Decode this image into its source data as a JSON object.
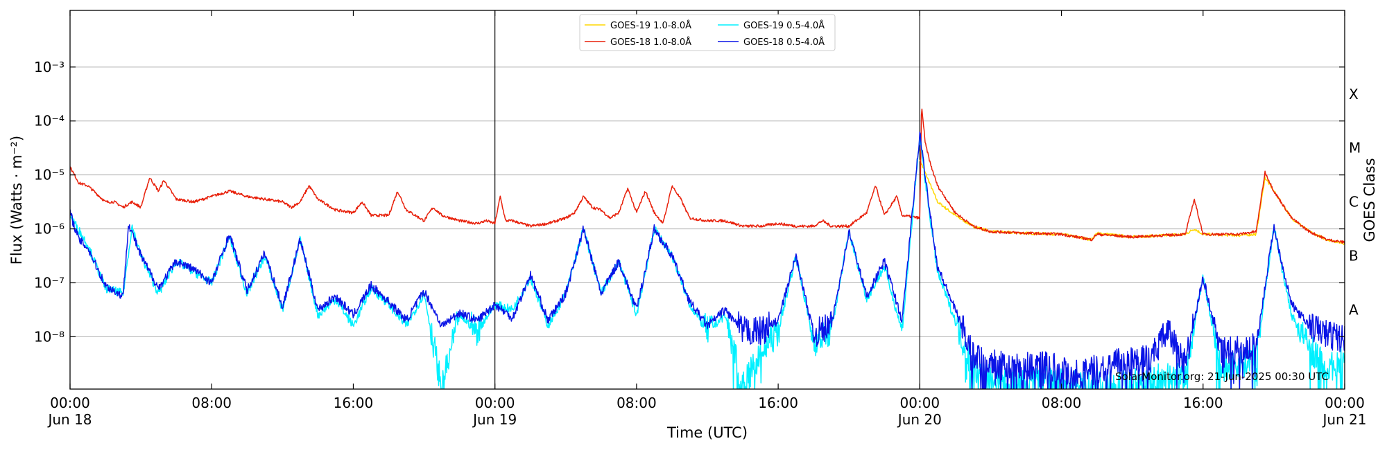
{
  "chart_data": {
    "type": "line",
    "title": "",
    "xlabel": "Time (UTC)",
    "ylabel": "Flux (Watts · m⁻²)",
    "right_label": "GOES Class",
    "credit": "SolarMonitor.org: 21-Jun-2025 00:30 UTC",
    "x_unit": "hours since Jun 18 00:00 UTC",
    "xlim": [
      0,
      72
    ],
    "ylim_log10": [
      -8.97,
      -1.95
    ],
    "grid": true,
    "legend_position": "top-center",
    "x_ticks": [
      {
        "t": 0,
        "line1": "00:00",
        "line2": "Jun 18"
      },
      {
        "t": 8,
        "line1": "08:00",
        "line2": ""
      },
      {
        "t": 16,
        "line1": "16:00",
        "line2": ""
      },
      {
        "t": 24,
        "line1": "00:00",
        "line2": "Jun 19"
      },
      {
        "t": 32,
        "line1": "08:00",
        "line2": ""
      },
      {
        "t": 40,
        "line1": "16:00",
        "line2": ""
      },
      {
        "t": 48,
        "line1": "00:00",
        "line2": "Jun 20"
      },
      {
        "t": 56,
        "line1": "08:00",
        "line2": ""
      },
      {
        "t": 64,
        "line1": "16:00",
        "line2": ""
      },
      {
        "t": 72,
        "line1": "00:00",
        "line2": "Jun 21"
      }
    ],
    "y_ticks": [
      {
        "exp": -8,
        "label": "10⁻⁸"
      },
      {
        "exp": -7,
        "label": "10⁻⁷"
      },
      {
        "exp": -6,
        "label": "10⁻⁶"
      },
      {
        "exp": -5,
        "label": "10⁻⁵"
      },
      {
        "exp": -4,
        "label": "10⁻⁴"
      },
      {
        "exp": -3,
        "label": "10⁻³"
      }
    ],
    "goes_classes": [
      {
        "label": "A",
        "exp": -7.5
      },
      {
        "label": "B",
        "exp": -6.5
      },
      {
        "label": "C",
        "exp": -5.5
      },
      {
        "label": "M",
        "exp": -4.5
      },
      {
        "label": "X",
        "exp": -3.5
      }
    ],
    "day_markers": [
      24,
      48
    ],
    "series": [
      {
        "name": "GOES-19 1.0-8.0Å",
        "color": "#FFD700",
        "band": "long",
        "points": [
          [
            48,
            -4.72
          ],
          [
            49,
            -5.5
          ],
          [
            50,
            -5.75
          ],
          [
            51,
            -5.95
          ],
          [
            52,
            -6.05
          ],
          [
            54,
            -6.08
          ],
          [
            56,
            -6.1
          ],
          [
            57.7,
            -6.2
          ],
          [
            58,
            -6.08
          ],
          [
            60,
            -6.15
          ],
          [
            63,
            -6.1
          ],
          [
            63.5,
            -6.0
          ],
          [
            64,
            -6.1
          ],
          [
            66,
            -6.12
          ],
          [
            67,
            -6.1
          ],
          [
            67.5,
            -5.05
          ],
          [
            68,
            -5.3
          ],
          [
            69,
            -5.8
          ],
          [
            70,
            -6.05
          ],
          [
            71,
            -6.2
          ],
          [
            72,
            -6.27
          ]
        ]
      },
      {
        "name": "GOES-18 1.0-8.0Å",
        "color": "#E8200A",
        "band": "long",
        "points": [
          [
            0,
            -4.85
          ],
          [
            0.5,
            -5.15
          ],
          [
            1,
            -5.2
          ],
          [
            1.5,
            -5.35
          ],
          [
            2,
            -5.5
          ],
          [
            2.5,
            -5.5
          ],
          [
            3,
            -5.6
          ],
          [
            3.5,
            -5.5
          ],
          [
            4,
            -5.6
          ],
          [
            4.5,
            -5.05
          ],
          [
            5,
            -5.3
          ],
          [
            5.3,
            -5.1
          ],
          [
            6,
            -5.45
          ],
          [
            7,
            -5.5
          ],
          [
            8,
            -5.4
          ],
          [
            9,
            -5.3
          ],
          [
            10,
            -5.4
          ],
          [
            11,
            -5.45
          ],
          [
            12,
            -5.5
          ],
          [
            12.5,
            -5.6
          ],
          [
            13,
            -5.5
          ],
          [
            13.5,
            -5.2
          ],
          [
            14,
            -5.45
          ],
          [
            15,
            -5.65
          ],
          [
            16,
            -5.7
          ],
          [
            16.5,
            -5.5
          ],
          [
            17,
            -5.75
          ],
          [
            18,
            -5.75
          ],
          [
            18.5,
            -5.3
          ],
          [
            19,
            -5.65
          ],
          [
            20,
            -5.85
          ],
          [
            20.5,
            -5.6
          ],
          [
            21,
            -5.75
          ],
          [
            22,
            -5.85
          ],
          [
            23,
            -5.9
          ],
          [
            23.5,
            -5.85
          ],
          [
            24,
            -5.9
          ],
          [
            24.3,
            -5.4
          ],
          [
            24.6,
            -5.85
          ],
          [
            25,
            -5.85
          ],
          [
            26,
            -5.95
          ],
          [
            27,
            -5.9
          ],
          [
            28,
            -5.8
          ],
          [
            28.5,
            -5.7
          ],
          [
            29,
            -5.4
          ],
          [
            29.5,
            -5.6
          ],
          [
            30,
            -5.65
          ],
          [
            30.5,
            -5.8
          ],
          [
            31,
            -5.7
          ],
          [
            31.5,
            -5.25
          ],
          [
            32,
            -5.7
          ],
          [
            32.5,
            -5.3
          ],
          [
            33,
            -5.7
          ],
          [
            33.5,
            -5.9
          ],
          [
            34,
            -5.2
          ],
          [
            34.5,
            -5.45
          ],
          [
            35,
            -5.8
          ],
          [
            36,
            -5.85
          ],
          [
            37,
            -5.85
          ],
          [
            38,
            -5.95
          ],
          [
            39,
            -5.95
          ],
          [
            40,
            -5.9
          ],
          [
            41,
            -5.95
          ],
          [
            42,
            -5.95
          ],
          [
            42.5,
            -5.85
          ],
          [
            43,
            -5.95
          ],
          [
            44,
            -5.95
          ],
          [
            45,
            -5.7
          ],
          [
            45.5,
            -5.2
          ],
          [
            46,
            -5.75
          ],
          [
            46.7,
            -5.4
          ],
          [
            47,
            -5.75
          ],
          [
            48,
            -5.8
          ],
          [
            48.1,
            -3.7
          ],
          [
            48.3,
            -4.4
          ],
          [
            48.6,
            -4.8
          ],
          [
            49,
            -5.2
          ],
          [
            50,
            -5.7
          ],
          [
            51,
            -5.95
          ],
          [
            52,
            -6.05
          ],
          [
            54,
            -6.08
          ],
          [
            56,
            -6.1
          ],
          [
            57.7,
            -6.2
          ],
          [
            58,
            -6.1
          ],
          [
            60,
            -6.15
          ],
          [
            63,
            -6.1
          ],
          [
            63.5,
            -5.45
          ],
          [
            64,
            -6.1
          ],
          [
            66,
            -6.1
          ],
          [
            67,
            -6.05
          ],
          [
            67.5,
            -4.95
          ],
          [
            68,
            -5.3
          ],
          [
            69,
            -5.8
          ],
          [
            70,
            -6.05
          ],
          [
            71,
            -6.2
          ],
          [
            72,
            -6.25
          ]
        ]
      },
      {
        "name": "GOES-19 0.5-4.0Å",
        "color": "#00F0FF",
        "band": "short",
        "points": [
          [
            0,
            -5.75
          ],
          [
            1,
            -6.3
          ],
          [
            2,
            -7.1
          ],
          [
            3,
            -7.2
          ],
          [
            3.5,
            -5.95
          ],
          [
            4,
            -6.5
          ],
          [
            5,
            -7.2
          ],
          [
            6,
            -6.6
          ],
          [
            7,
            -6.8
          ],
          [
            8,
            -7.0
          ],
          [
            9,
            -6.15
          ],
          [
            10,
            -7.2
          ],
          [
            11,
            -6.5
          ],
          [
            12,
            -7.5
          ],
          [
            13,
            -6.2
          ],
          [
            14,
            -7.6
          ],
          [
            15,
            -7.3
          ],
          [
            16,
            -7.8
          ],
          [
            17,
            -7.1
          ],
          [
            18,
            -7.4
          ],
          [
            19,
            -7.8
          ],
          [
            20,
            -7.2
          ],
          [
            21,
            -8.95
          ],
          [
            22,
            -7.6
          ],
          [
            23,
            -7.9
          ],
          [
            24,
            -7.4
          ],
          [
            25,
            -7.5
          ],
          [
            26,
            -6.9
          ],
          [
            27,
            -7.8
          ],
          [
            28,
            -7.2
          ],
          [
            29,
            -6.0
          ],
          [
            30,
            -7.2
          ],
          [
            31,
            -6.6
          ],
          [
            32,
            -7.6
          ],
          [
            33,
            -6.0
          ],
          [
            34,
            -6.5
          ],
          [
            35,
            -7.4
          ],
          [
            36,
            -7.9
          ],
          [
            37,
            -7.6
          ],
          [
            38,
            -8.95
          ],
          [
            39,
            -8.3
          ],
          [
            40,
            -7.9
          ],
          [
            41,
            -6.5
          ],
          [
            42,
            -8.1
          ],
          [
            43,
            -7.9
          ],
          [
            44,
            -6.05
          ],
          [
            45,
            -7.3
          ],
          [
            46,
            -6.7
          ],
          [
            47,
            -7.9
          ],
          [
            48,
            -4.3
          ],
          [
            48.5,
            -5.6
          ],
          [
            49,
            -6.8
          ],
          [
            50,
            -7.7
          ],
          [
            51,
            -8.6
          ],
          [
            53,
            -8.9
          ],
          [
            55,
            -8.8
          ],
          [
            57,
            -8.9
          ],
          [
            59,
            -8.9
          ],
          [
            61,
            -8.8
          ],
          [
            63,
            -8.7
          ],
          [
            64,
            -6.9
          ],
          [
            65,
            -8.6
          ],
          [
            67,
            -8.4
          ],
          [
            68,
            -5.95
          ],
          [
            68.5,
            -6.8
          ],
          [
            69,
            -7.6
          ],
          [
            70,
            -8.2
          ],
          [
            71,
            -8.6
          ],
          [
            72,
            -8.4
          ]
        ]
      },
      {
        "name": "GOES-18 0.5-4.0Å",
        "color": "#0A14E6",
        "band": "short",
        "points": [
          [
            0,
            -5.7
          ],
          [
            0.5,
            -6.2
          ],
          [
            1,
            -6.35
          ],
          [
            2,
            -7.05
          ],
          [
            3,
            -7.25
          ],
          [
            3.3,
            -5.9
          ],
          [
            4,
            -6.5
          ],
          [
            5,
            -7.1
          ],
          [
            6,
            -6.6
          ],
          [
            7,
            -6.75
          ],
          [
            8,
            -7.0
          ],
          [
            9,
            -6.1
          ],
          [
            10,
            -7.15
          ],
          [
            11,
            -6.45
          ],
          [
            12,
            -7.45
          ],
          [
            13,
            -6.2
          ],
          [
            14,
            -7.5
          ],
          [
            15,
            -7.25
          ],
          [
            16,
            -7.6
          ],
          [
            17,
            -7.05
          ],
          [
            18,
            -7.35
          ],
          [
            19,
            -7.7
          ],
          [
            20,
            -7.15
          ],
          [
            21,
            -7.8
          ],
          [
            22,
            -7.55
          ],
          [
            23,
            -7.7
          ],
          [
            24,
            -7.4
          ],
          [
            25,
            -7.65
          ],
          [
            26,
            -6.85
          ],
          [
            27,
            -7.7
          ],
          [
            28,
            -7.2
          ],
          [
            29,
            -6.0
          ],
          [
            30,
            -7.2
          ],
          [
            31,
            -6.6
          ],
          [
            32,
            -7.5
          ],
          [
            33,
            -6.0
          ],
          [
            34,
            -6.5
          ],
          [
            35,
            -7.35
          ],
          [
            36,
            -7.8
          ],
          [
            37,
            -7.5
          ],
          [
            38,
            -7.9
          ],
          [
            39,
            -7.9
          ],
          [
            40,
            -7.7
          ],
          [
            41,
            -6.5
          ],
          [
            42,
            -7.95
          ],
          [
            43,
            -7.8
          ],
          [
            44,
            -6.05
          ],
          [
            45,
            -7.25
          ],
          [
            46,
            -6.6
          ],
          [
            47,
            -7.7
          ],
          [
            48,
            -4.25
          ],
          [
            48.5,
            -5.5
          ],
          [
            49,
            -6.7
          ],
          [
            50,
            -7.5
          ],
          [
            51,
            -8.3
          ],
          [
            53,
            -8.6
          ],
          [
            55,
            -8.5
          ],
          [
            57,
            -8.7
          ],
          [
            59,
            -8.5
          ],
          [
            61,
            -8.4
          ],
          [
            62,
            -7.9
          ],
          [
            63,
            -8.5
          ],
          [
            64,
            -6.9
          ],
          [
            65,
            -8.3
          ],
          [
            67,
            -8.2
          ],
          [
            68,
            -5.95
          ],
          [
            68.5,
            -6.7
          ],
          [
            69,
            -7.4
          ],
          [
            70,
            -7.8
          ],
          [
            71,
            -7.95
          ],
          [
            72,
            -8.05
          ]
        ]
      }
    ]
  }
}
